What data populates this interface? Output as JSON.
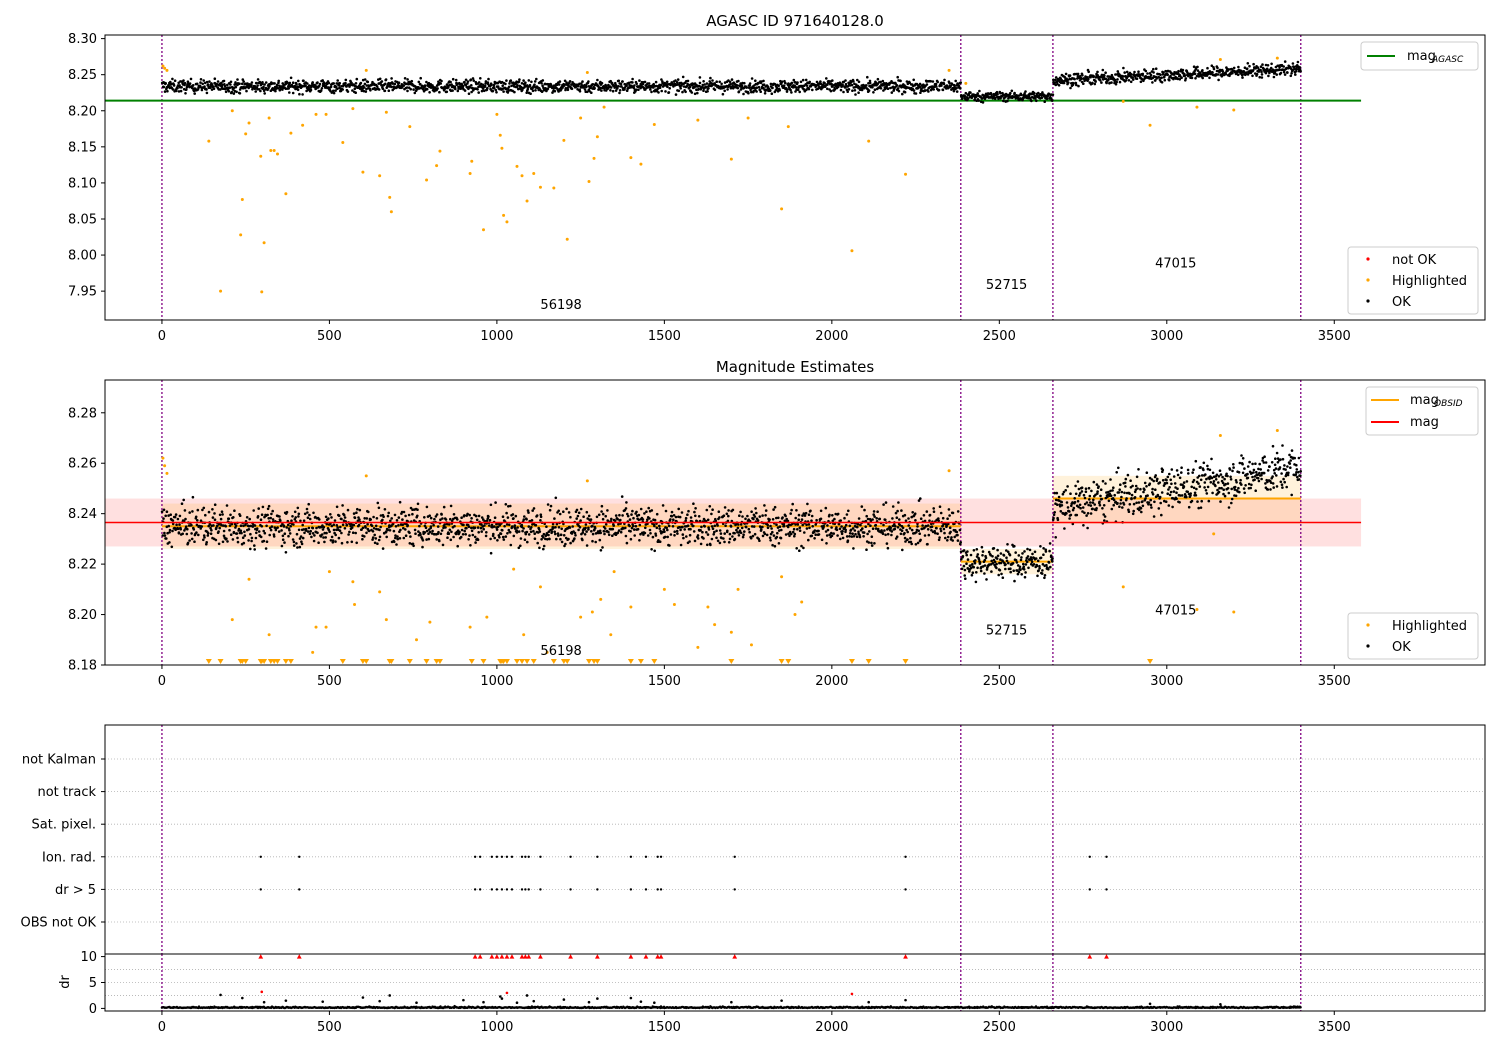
{
  "colors": {
    "ok": "#000000",
    "highlighted": "#ffa500",
    "not_ok": "#ff0000",
    "agasc_line": "#008000",
    "obs_boundary": "#800080",
    "mag_band": "#ffc0c0",
    "obsid_band": "#ffdcb0",
    "grid": "#b0b0b0"
  },
  "chart_data": [
    {
      "id": "top",
      "type": "scatter",
      "title": "AGASC ID 971640128.0",
      "xlim": [
        -170,
        3950
      ],
      "ylim": [
        7.91,
        8.305
      ],
      "xticks": [
        0,
        500,
        1000,
        1500,
        2000,
        2500,
        3000,
        3500
      ],
      "yticks": [
        7.95,
        8.0,
        8.05,
        8.1,
        8.15,
        8.2,
        8.25,
        8.3
      ],
      "yticklabels": [
        "7.95",
        "8.00",
        "8.05",
        "8.10",
        "8.15",
        "8.20",
        "8.25",
        "8.30"
      ],
      "obs_boundaries": [
        0,
        2385,
        2660,
        3400
      ],
      "obsid_labels": [
        {
          "text": "56198",
          "x": 1130,
          "y": 7.925
        },
        {
          "text": "52715",
          "x": 2460,
          "y": 7.953
        },
        {
          "text": "47015",
          "x": 2965,
          "y": 7.983
        }
      ],
      "mag_agasc": {
        "value": 8.214,
        "x_range": [
          -170,
          3580
        ]
      },
      "ok_segments": [
        {
          "x": [
            0,
            2385
          ],
          "level": 8.234,
          "spread": 0.008,
          "slope": 0
        },
        {
          "x": [
            2385,
            2660
          ],
          "level": 8.22,
          "spread": 0.006,
          "slope": 0
        },
        {
          "x": [
            2660,
            3400
          ],
          "level": 8.242,
          "spread": 0.008,
          "slope": 2.2e-05
        }
      ],
      "highlighted_points": [
        [
          3,
          8.262
        ],
        [
          8,
          8.259
        ],
        [
          15,
          8.256
        ],
        [
          140,
          8.158
        ],
        [
          175,
          7.95
        ],
        [
          210,
          8.2
        ],
        [
          235,
          8.028
        ],
        [
          240,
          8.077
        ],
        [
          250,
          8.168
        ],
        [
          260,
          8.183
        ],
        [
          295,
          8.137
        ],
        [
          298,
          7.949
        ],
        [
          305,
          8.017
        ],
        [
          320,
          8.19
        ],
        [
          325,
          8.145
        ],
        [
          335,
          8.145
        ],
        [
          345,
          8.14
        ],
        [
          370,
          8.085
        ],
        [
          385,
          8.169
        ],
        [
          420,
          8.18
        ],
        [
          460,
          8.195
        ],
        [
          490,
          8.195
        ],
        [
          540,
          8.156
        ],
        [
          570,
          8.203
        ],
        [
          600,
          8.115
        ],
        [
          610,
          8.256
        ],
        [
          650,
          8.11
        ],
        [
          670,
          8.198
        ],
        [
          680,
          8.08
        ],
        [
          685,
          8.06
        ],
        [
          740,
          8.178
        ],
        [
          790,
          8.104
        ],
        [
          820,
          8.124
        ],
        [
          830,
          8.144
        ],
        [
          920,
          8.113
        ],
        [
          925,
          8.13
        ],
        [
          960,
          8.035
        ],
        [
          1000,
          8.195
        ],
        [
          1010,
          8.166
        ],
        [
          1015,
          8.148
        ],
        [
          1020,
          8.055
        ],
        [
          1030,
          8.046
        ],
        [
          1060,
          8.123
        ],
        [
          1075,
          8.11
        ],
        [
          1090,
          8.075
        ],
        [
          1110,
          8.113
        ],
        [
          1130,
          8.094
        ],
        [
          1170,
          8.093
        ],
        [
          1200,
          8.159
        ],
        [
          1210,
          8.022
        ],
        [
          1250,
          8.19
        ],
        [
          1270,
          8.253
        ],
        [
          1275,
          8.102
        ],
        [
          1290,
          8.134
        ],
        [
          1300,
          8.164
        ],
        [
          1320,
          8.205
        ],
        [
          1400,
          8.135
        ],
        [
          1430,
          8.126
        ],
        [
          1470,
          8.181
        ],
        [
          1600,
          8.187
        ],
        [
          1700,
          8.133
        ],
        [
          1750,
          8.19
        ],
        [
          1850,
          8.064
        ],
        [
          1870,
          8.178
        ],
        [
          2060,
          8.006
        ],
        [
          2110,
          8.158
        ],
        [
          2220,
          8.112
        ],
        [
          2350,
          8.256
        ],
        [
          2400,
          8.238
        ],
        [
          2870,
          8.213
        ],
        [
          2950,
          8.18
        ],
        [
          3090,
          8.205
        ],
        [
          3160,
          8.271
        ],
        [
          3200,
          8.201
        ],
        [
          3330,
          8.273
        ]
      ],
      "legend_upper": [
        {
          "label": "mag",
          "sub": "AGASC",
          "kind": "line",
          "color": "#008000"
        }
      ],
      "legend_lower": [
        {
          "label": "not OK",
          "kind": "marker",
          "color": "#ff0000"
        },
        {
          "label": "Highlighted",
          "kind": "marker",
          "color": "#ffa500"
        },
        {
          "label": "OK",
          "kind": "marker",
          "color": "#000000"
        }
      ]
    },
    {
      "id": "middle",
      "type": "scatter",
      "title": "Magnitude Estimates",
      "xlim": [
        -170,
        3950
      ],
      "ylim": [
        8.18,
        8.293
      ],
      "xticks": [
        0,
        500,
        1000,
        1500,
        2000,
        2500,
        3000,
        3500
      ],
      "yticks": [
        8.18,
        8.2,
        8.22,
        8.24,
        8.26,
        8.28
      ],
      "yticklabels": [
        "8.18",
        "8.20",
        "8.22",
        "8.24",
        "8.26",
        "8.28"
      ],
      "obs_boundaries": [
        0,
        2385,
        2660,
        3400
      ],
      "obsid_labels": [
        {
          "text": "56198",
          "x": 1130,
          "y": 8.184
        },
        {
          "text": "52715",
          "x": 2460,
          "y": 8.192
        },
        {
          "text": "47015",
          "x": 2965,
          "y": 8.2
        }
      ],
      "mag": {
        "value": 8.2365,
        "band": [
          8.227,
          8.246
        ],
        "x_range": [
          -170,
          3580
        ]
      },
      "mag_obsid": [
        {
          "x": [
            0,
            2385
          ],
          "value": 8.235,
          "band": [
            8.226,
            8.244
          ]
        },
        {
          "x": [
            2385,
            2660
          ],
          "value": 8.221,
          "band": [
            8.216,
            8.226
          ]
        },
        {
          "x": [
            2660,
            3400
          ],
          "value": 8.246,
          "band": [
            8.236,
            8.255
          ]
        }
      ],
      "ok_segments": [
        {
          "x": [
            0,
            2385
          ],
          "level": 8.235,
          "spread": 0.007,
          "slope": 0
        },
        {
          "x": [
            2385,
            2660
          ],
          "level": 8.221,
          "spread": 0.006,
          "slope": 0
        },
        {
          "x": [
            2660,
            3400
          ],
          "level": 8.242,
          "spread": 0.008,
          "slope": 2.2e-05
        }
      ],
      "highlighted_points": [
        [
          3,
          8.262
        ],
        [
          8,
          8.259
        ],
        [
          15,
          8.256
        ],
        [
          210,
          8.198
        ],
        [
          260,
          8.214
        ],
        [
          320,
          8.192
        ],
        [
          450,
          8.185
        ],
        [
          460,
          8.195
        ],
        [
          490,
          8.195
        ],
        [
          500,
          8.217
        ],
        [
          570,
          8.213
        ],
        [
          575,
          8.204
        ],
        [
          610,
          8.255
        ],
        [
          650,
          8.209
        ],
        [
          670,
          8.198
        ],
        [
          760,
          8.19
        ],
        [
          800,
          8.197
        ],
        [
          920,
          8.195
        ],
        [
          970,
          8.199
        ],
        [
          1050,
          8.218
        ],
        [
          1080,
          8.192
        ],
        [
          1130,
          8.211
        ],
        [
          1150,
          8.185
        ],
        [
          1250,
          8.199
        ],
        [
          1270,
          8.253
        ],
        [
          1285,
          8.201
        ],
        [
          1310,
          8.206
        ],
        [
          1340,
          8.192
        ],
        [
          1350,
          8.217
        ],
        [
          1400,
          8.203
        ],
        [
          1500,
          8.21
        ],
        [
          1530,
          8.204
        ],
        [
          1600,
          8.187
        ],
        [
          1630,
          8.203
        ],
        [
          1650,
          8.196
        ],
        [
          1700,
          8.193
        ],
        [
          1720,
          8.21
        ],
        [
          1760,
          8.188
        ],
        [
          1850,
          8.215
        ],
        [
          1890,
          8.2
        ],
        [
          1910,
          8.205
        ],
        [
          2350,
          8.257
        ],
        [
          2870,
          8.211
        ],
        [
          3090,
          8.202
        ],
        [
          3140,
          8.232
        ],
        [
          3160,
          8.271
        ],
        [
          3200,
          8.201
        ],
        [
          3330,
          8.273
        ]
      ],
      "clipped_highlighted_x": [
        140,
        175,
        235,
        240,
        250,
        295,
        298,
        305,
        325,
        335,
        345,
        370,
        385,
        540,
        600,
        610,
        680,
        685,
        740,
        790,
        820,
        830,
        925,
        960,
        1010,
        1015,
        1020,
        1030,
        1060,
        1075,
        1090,
        1110,
        1170,
        1200,
        1210,
        1275,
        1290,
        1300,
        1400,
        1430,
        1470,
        1700,
        1850,
        1870,
        2060,
        2110,
        2220,
        2950
      ],
      "legend_upper": [
        {
          "label": "mag",
          "sub": "OBSID",
          "kind": "line",
          "color": "#ffa500"
        },
        {
          "label": "mag",
          "kind": "line",
          "color": "#ff0000"
        }
      ],
      "legend_lower": [
        {
          "label": "Highlighted",
          "kind": "marker",
          "color": "#ffa500"
        },
        {
          "label": "OK",
          "kind": "marker",
          "color": "#000000"
        }
      ]
    },
    {
      "id": "flags",
      "type": "scatter",
      "xlim": [
        -170,
        3950
      ],
      "categories": [
        "not Kalman",
        "not track",
        "Sat. pixel.",
        "Ion. rad.",
        "dr > 5",
        "OBS not OK"
      ],
      "obs_boundaries": [
        0,
        2385,
        2660,
        3400
      ],
      "flag_x": [
        295,
        410,
        935,
        950,
        985,
        1000,
        1015,
        1030,
        1045,
        1075,
        1085,
        1095,
        1130,
        1220,
        1300,
        1400,
        1445,
        1480,
        1490,
        1710,
        2220,
        2770,
        2820
      ],
      "flagged_categories": [
        "Ion. rad.",
        "dr > 5"
      ]
    },
    {
      "id": "dr",
      "type": "scatter",
      "ylabel": "dr",
      "xlim": [
        -170,
        3950
      ],
      "ylim": [
        -0.5,
        10.5
      ],
      "xticks": [
        0,
        500,
        1000,
        1500,
        2000,
        2500,
        3000,
        3500
      ],
      "yticks": [
        0,
        5,
        10
      ],
      "yticklabels": [
        "0",
        "5",
        "10"
      ],
      "clip_value": 10,
      "obs_boundaries": [
        0,
        2385,
        2660,
        3400
      ],
      "clipped_x": [
        295,
        410,
        935,
        950,
        985,
        1000,
        1015,
        1030,
        1045,
        1075,
        1085,
        1095,
        1130,
        1220,
        1300,
        1400,
        1445,
        1480,
        1490,
        1710,
        2220,
        2770,
        2820
      ],
      "outliers": [
        [
          175,
          2.6
        ],
        [
          240,
          2.0
        ],
        [
          298,
          3.2
        ],
        [
          305,
          1.2
        ],
        [
          370,
          1.5
        ],
        [
          480,
          1.3
        ],
        [
          600,
          2.1
        ],
        [
          650,
          1.4
        ],
        [
          680,
          2.5
        ],
        [
          760,
          1.1
        ],
        [
          900,
          1.6
        ],
        [
          960,
          1.2
        ],
        [
          1010,
          2.3
        ],
        [
          1015,
          1.9
        ],
        [
          1030,
          3.0
        ],
        [
          1060,
          1.1
        ],
        [
          1090,
          2.5
        ],
        [
          1110,
          1.4
        ],
        [
          1200,
          1.7
        ],
        [
          1275,
          1.2
        ],
        [
          1300,
          1.9
        ],
        [
          1400,
          2.0
        ],
        [
          1430,
          1.3
        ],
        [
          1470,
          1.1
        ],
        [
          1700,
          1.2
        ],
        [
          1850,
          1.5
        ],
        [
          2060,
          2.8
        ],
        [
          2110,
          1.2
        ],
        [
          2220,
          1.6
        ],
        [
          2950,
          0.9
        ],
        [
          3160,
          0.8
        ]
      ],
      "outlier_not_ok_x": [
        298,
        1030,
        2060
      ]
    }
  ]
}
